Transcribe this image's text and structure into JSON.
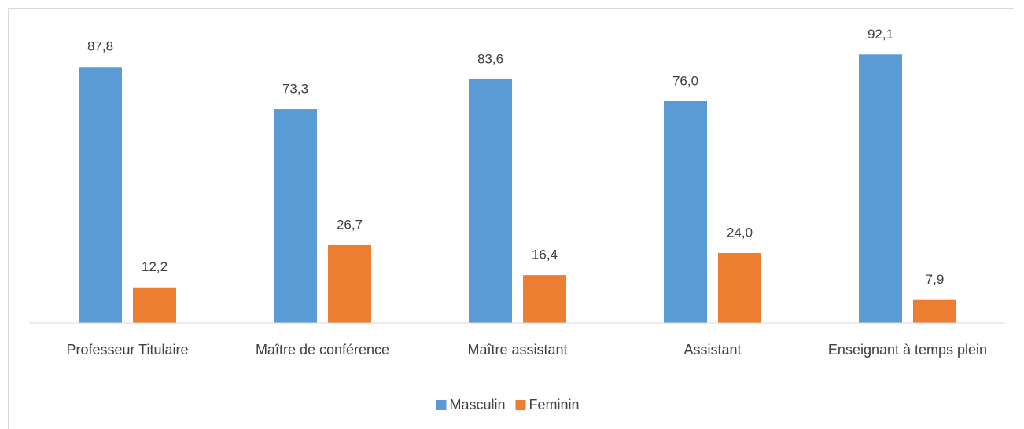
{
  "chart_data": {
    "type": "bar",
    "categories": [
      "Professeur Titulaire",
      "Maître de conférence",
      "Maître assistant",
      "Assistant",
      "Enseignant à temps plein"
    ],
    "series": [
      {
        "name": "Masculin",
        "color": "#5b9bd5",
        "values": [
          87.8,
          73.3,
          83.6,
          76.0,
          92.1
        ],
        "value_labels": [
          "87,8",
          "73,3",
          "83,6",
          "76,0",
          "92,1"
        ]
      },
      {
        "name": "Feminin",
        "color": "#ed7d31",
        "values": [
          12.2,
          26.7,
          16.4,
          24.0,
          7.9
        ],
        "value_labels": [
          "12,2",
          "26,7",
          "16,4",
          "24,0",
          "7,9"
        ]
      }
    ],
    "ylim": [
      0,
      100
    ],
    "legend": "bottom"
  }
}
